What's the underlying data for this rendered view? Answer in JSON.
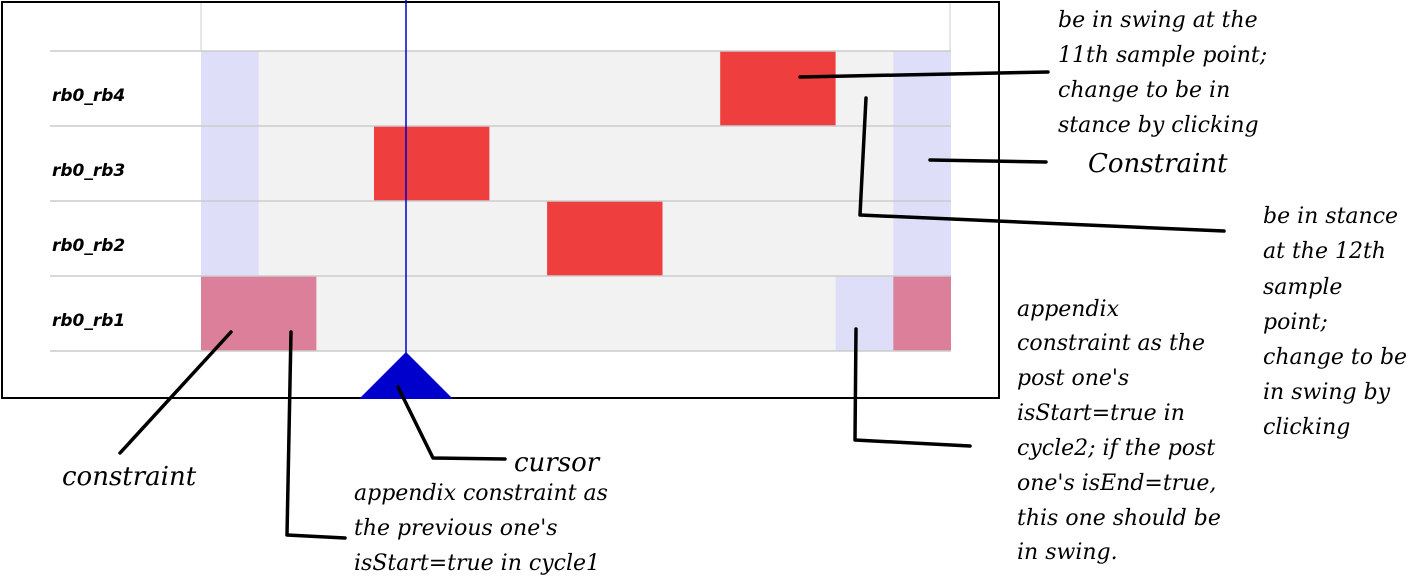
{
  "timeline": {
    "rows": [
      {
        "label": "rb0_rb4"
      },
      {
        "label": "rb0_rb3"
      },
      {
        "label": "rb0_rb2"
      },
      {
        "label": "rb0_rb1"
      }
    ]
  },
  "colors": {
    "background_cell": "#f2f2f2",
    "swing": "#ef3e3e",
    "constraint": "#dedef8",
    "appendix_swing": "#dc7f9a",
    "cursor": "#0000cc",
    "grid_line": "#cccccc"
  },
  "cursor": {
    "icon": "triangle-up-icon"
  },
  "annotations": {
    "swing_11th": [
      "be in swing at the",
      "11th sample point;",
      "change to be in",
      "stance by clicking"
    ],
    "constraint_right": "Constraint",
    "stance_12th": [
      "be in stance",
      "at the 12th",
      "sample",
      "point;",
      "change to be",
      "in swing by",
      "clicking"
    ],
    "appendix_post": [
      "appendix",
      "constraint as the",
      "post one's",
      "isStart=true in",
      "cycle2; if the post",
      "one's isEnd=true,",
      "this one should be",
      "in swing."
    ],
    "constraint_left": "constraint",
    "cursor_label": "cursor",
    "appendix_prev": [
      "appendix constraint as",
      "the previous one's",
      "isStart=true in cycle1"
    ]
  }
}
